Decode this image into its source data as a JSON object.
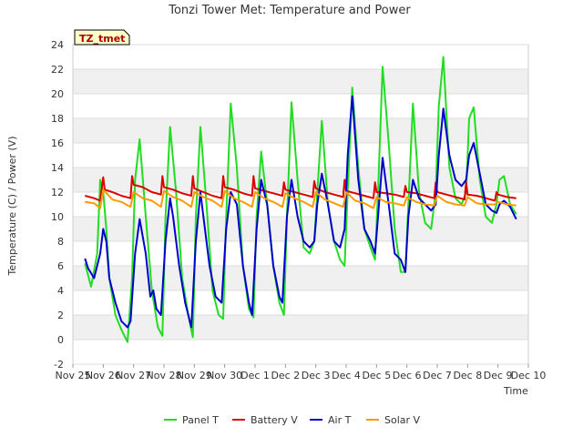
{
  "chart_data": {
    "type": "line",
    "title": "Tonzi Tower Met: Temperature and Power",
    "site_label": "TZ_tmet",
    "xlabel": "Time",
    "ylabel": "Temperature (C) / Power (V)",
    "xlim": [
      0,
      15
    ],
    "ylim": [
      -2,
      24
    ],
    "yticks": [
      -2,
      0,
      2,
      4,
      6,
      8,
      10,
      12,
      14,
      16,
      18,
      20,
      22,
      24
    ],
    "x_tick_labels": [
      "Nov 25",
      "Nov 26",
      "Nov 27",
      "Nov 28",
      "Nov 29",
      "Nov 30",
      "Dec 1",
      "Dec 2",
      "Dec 3",
      "Dec 4",
      "Dec 5",
      "Dec 6",
      "Dec 7",
      "Dec 8",
      "Dec 9",
      "Dec 10"
    ],
    "x_unit": "days since Nov 25",
    "series": [
      {
        "name": "Panel T",
        "color": "#22dd22",
        "x": [
          0.4,
          0.6,
          0.8,
          0.9,
          1.0,
          1.1,
          1.2,
          1.4,
          1.6,
          1.8,
          1.95,
          2.05,
          2.2,
          2.4,
          2.6,
          2.8,
          2.95,
          3.05,
          3.2,
          3.4,
          3.6,
          3.8,
          3.95,
          4.05,
          4.2,
          4.4,
          4.6,
          4.8,
          4.95,
          5.05,
          5.2,
          5.4,
          5.6,
          5.8,
          5.95,
          6.05,
          6.2,
          6.4,
          6.6,
          6.8,
          6.95,
          7.05,
          7.2,
          7.4,
          7.6,
          7.8,
          7.95,
          8.05,
          8.2,
          8.4,
          8.6,
          8.8,
          8.95,
          9.05,
          9.2,
          9.4,
          9.6,
          9.8,
          9.95,
          10.05,
          10.2,
          10.4,
          10.6,
          10.8,
          10.95,
          11.05,
          11.2,
          11.4,
          11.6,
          11.8,
          11.95,
          12.05,
          12.2,
          12.4,
          12.6,
          12.8,
          12.95,
          13.05,
          13.2,
          13.4,
          13.6,
          13.8,
          13.95,
          14.05,
          14.2,
          14.4,
          14.6
        ],
        "y": [
          6.2,
          4.3,
          7.0,
          13.0,
          12.0,
          9.0,
          5.0,
          2.0,
          0.8,
          -0.2,
          5.0,
          13.0,
          16.3,
          10.0,
          4.0,
          1.0,
          0.3,
          10.0,
          17.3,
          12.0,
          5.0,
          2.0,
          0.2,
          10.0,
          17.3,
          11.0,
          4.0,
          2.0,
          1.7,
          10.0,
          19.2,
          14.0,
          6.0,
          2.5,
          1.8,
          10.0,
          15.3,
          11.0,
          6.0,
          3.0,
          2.0,
          10.0,
          19.3,
          13.0,
          7.5,
          7.0,
          8.0,
          12.0,
          17.8,
          11.0,
          8.0,
          6.5,
          6.0,
          12.0,
          20.5,
          14.0,
          9.0,
          7.5,
          6.5,
          12.0,
          22.2,
          16.0,
          9.0,
          5.5,
          5.5,
          11.0,
          19.2,
          12.0,
          9.5,
          9.0,
          12.0,
          19.0,
          23.0,
          14.0,
          11.5,
          11.0,
          12.0,
          18.0,
          18.9,
          13.0,
          10.0,
          9.5,
          11.0,
          13.0,
          13.3,
          11.0,
          10.2
        ]
      },
      {
        "name": "Battery V",
        "color": "#dd0000",
        "x": [
          0.4,
          0.7,
          0.9,
          1.0,
          1.05,
          1.3,
          1.6,
          1.9,
          1.95,
          2.0,
          2.3,
          2.6,
          2.9,
          2.95,
          3.0,
          3.3,
          3.6,
          3.9,
          3.95,
          4.0,
          4.3,
          4.6,
          4.9,
          4.95,
          5.0,
          5.3,
          5.6,
          5.9,
          5.95,
          6.0,
          6.3,
          6.6,
          6.9,
          6.95,
          7.0,
          7.3,
          7.6,
          7.9,
          7.95,
          8.0,
          8.3,
          8.6,
          8.9,
          8.95,
          9.0,
          9.3,
          9.6,
          9.9,
          9.95,
          10.0,
          10.3,
          10.6,
          10.9,
          10.95,
          11.0,
          11.3,
          11.6,
          11.9,
          11.95,
          12.0,
          12.3,
          12.6,
          12.9,
          12.95,
          13.0,
          13.3,
          13.6,
          13.9,
          13.95,
          14.0,
          14.3,
          14.6
        ],
        "y": [
          11.7,
          11.5,
          11.3,
          13.2,
          12.2,
          12.0,
          11.7,
          11.5,
          13.3,
          12.6,
          12.4,
          12.0,
          11.8,
          13.3,
          12.4,
          12.2,
          11.9,
          11.7,
          13.3,
          12.3,
          12.0,
          11.7,
          11.5,
          13.3,
          12.4,
          12.2,
          11.9,
          11.7,
          13.3,
          12.3,
          12.1,
          11.9,
          11.7,
          12.8,
          12.2,
          12.0,
          11.8,
          11.6,
          12.9,
          12.3,
          12.0,
          11.8,
          11.6,
          13.0,
          12.1,
          11.9,
          11.7,
          11.5,
          12.8,
          12.0,
          11.9,
          11.8,
          11.6,
          12.5,
          12.0,
          11.9,
          11.7,
          11.5,
          12.8,
          12.0,
          11.8,
          11.6,
          11.4,
          12.8,
          11.8,
          11.7,
          11.5,
          11.3,
          12.0,
          11.8,
          11.6,
          11.5
        ]
      },
      {
        "name": "Air T",
        "color": "#0000cc",
        "x": [
          0.4,
          0.5,
          0.7,
          0.9,
          1.0,
          1.1,
          1.2,
          1.4,
          1.6,
          1.8,
          1.9,
          2.05,
          2.2,
          2.4,
          2.55,
          2.65,
          2.75,
          2.9,
          3.05,
          3.2,
          3.3,
          3.5,
          3.7,
          3.8,
          3.9,
          4.05,
          4.2,
          4.3,
          4.5,
          4.7,
          4.9,
          5.05,
          5.2,
          5.4,
          5.6,
          5.8,
          5.9,
          6.05,
          6.2,
          6.4,
          6.6,
          6.8,
          6.9,
          7.05,
          7.2,
          7.4,
          7.6,
          7.8,
          7.95,
          8.05,
          8.2,
          8.4,
          8.6,
          8.8,
          8.95,
          9.05,
          9.2,
          9.4,
          9.6,
          9.8,
          9.95,
          10.05,
          10.2,
          10.4,
          10.6,
          10.8,
          10.95,
          11.05,
          11.2,
          11.4,
          11.6,
          11.8,
          11.95,
          12.05,
          12.2,
          12.4,
          12.6,
          12.8,
          12.95,
          13.05,
          13.2,
          13.4,
          13.6,
          13.8,
          13.95,
          14.05,
          14.2,
          14.4,
          14.6
        ],
        "y": [
          6.6,
          5.8,
          5.0,
          7.0,
          9.0,
          8.0,
          5.0,
          3.0,
          1.5,
          1.0,
          1.5,
          7.0,
          9.8,
          7.0,
          3.5,
          4.0,
          2.5,
          2.0,
          8.0,
          11.5,
          10.0,
          6.0,
          3.0,
          2.0,
          1.0,
          8.0,
          12.0,
          10.0,
          6.0,
          3.5,
          3.0,
          9.0,
          12.0,
          11.0,
          6.0,
          3.0,
          2.0,
          9.0,
          13.0,
          11.0,
          6.0,
          3.5,
          3.0,
          10.0,
          13.0,
          10.0,
          8.0,
          7.5,
          8.0,
          11.0,
          13.5,
          11.0,
          8.0,
          7.5,
          9.0,
          15.0,
          19.8,
          13.0,
          9.0,
          8.0,
          7.0,
          10.0,
          14.8,
          11.0,
          7.0,
          6.5,
          5.5,
          10.0,
          13.0,
          11.5,
          11.0,
          10.5,
          11.0,
          15.0,
          18.8,
          15.0,
          13.0,
          12.5,
          13.0,
          15.0,
          16.0,
          13.5,
          11.0,
          10.5,
          10.3,
          11.0,
          11.3,
          10.8,
          9.8
        ]
      },
      {
        "name": "Solar V",
        "color": "#ff9900",
        "x": [
          0.4,
          0.7,
          0.9,
          1.0,
          1.3,
          1.6,
          1.9,
          2.0,
          2.3,
          2.6,
          2.9,
          3.0,
          3.3,
          3.6,
          3.9,
          4.0,
          4.3,
          4.6,
          4.9,
          5.0,
          5.3,
          5.6,
          5.9,
          6.0,
          6.3,
          6.6,
          6.9,
          7.0,
          7.3,
          7.6,
          7.9,
          8.0,
          8.3,
          8.6,
          8.9,
          9.0,
          9.3,
          9.6,
          9.9,
          10.0,
          10.3,
          10.6,
          10.9,
          11.0,
          11.3,
          11.6,
          11.9,
          12.0,
          12.3,
          12.6,
          12.9,
          13.0,
          13.3,
          13.6,
          13.9,
          14.0,
          14.3,
          14.6
        ],
        "y": [
          11.2,
          11.1,
          10.7,
          12.2,
          11.4,
          11.2,
          10.8,
          12.0,
          11.5,
          11.3,
          10.8,
          12.1,
          11.6,
          11.3,
          10.8,
          12.0,
          11.6,
          11.3,
          10.8,
          12.1,
          11.5,
          11.2,
          10.8,
          12.0,
          11.5,
          11.2,
          10.8,
          11.9,
          11.5,
          11.2,
          10.8,
          12.0,
          11.4,
          11.1,
          10.8,
          12.0,
          11.3,
          11.1,
          10.7,
          11.6,
          11.2,
          11.1,
          10.9,
          11.6,
          11.2,
          11.0,
          10.9,
          11.7,
          11.2,
          11.0,
          10.9,
          11.6,
          11.1,
          11.0,
          11.0,
          11.2,
          11.0,
          10.9
        ]
      }
    ]
  }
}
